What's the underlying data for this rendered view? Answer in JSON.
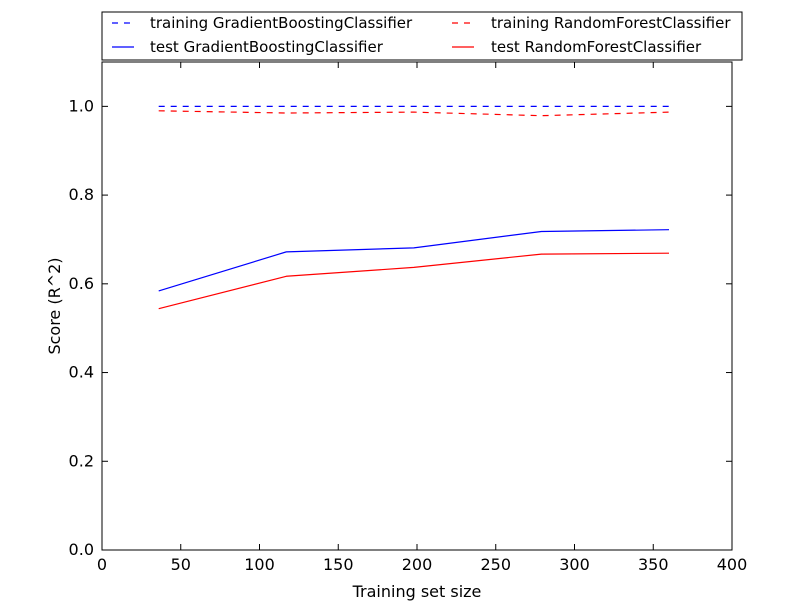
{
  "chart_data": {
    "type": "line",
    "title": "",
    "xlabel": "Training set size",
    "ylabel": "Score (R^2)",
    "xlim": [
      0,
      400
    ],
    "ylim": [
      0.0,
      1.1
    ],
    "x_ticks": [
      0,
      50,
      100,
      150,
      200,
      250,
      300,
      350,
      400
    ],
    "y_ticks": [
      0.0,
      0.2,
      0.4,
      0.6,
      0.8,
      1.0
    ],
    "x_tick_labels": [
      "0",
      "50",
      "100",
      "150",
      "200",
      "250",
      "300",
      "350",
      "400"
    ],
    "y_tick_labels": [
      "0.0",
      "0.2",
      "0.4",
      "0.6",
      "0.8",
      "1.0"
    ],
    "grid": false,
    "legend_position": "top",
    "x": [
      36,
      117,
      198,
      279,
      360
    ],
    "series": [
      {
        "name": "training GradientBoostingClassifier",
        "values": [
          1.0,
          1.0,
          1.0,
          1.0,
          1.0
        ],
        "color": "#0000ff",
        "style": "dashed"
      },
      {
        "name": "test GradientBoostingClassifier",
        "values": [
          0.584,
          0.672,
          0.681,
          0.718,
          0.722
        ],
        "color": "#0000ff",
        "style": "solid"
      },
      {
        "name": "training RandomForestClassifier",
        "values": [
          0.99,
          0.985,
          0.987,
          0.979,
          0.987
        ],
        "color": "#ff0000",
        "style": "dashed"
      },
      {
        "name": "test RandomForestClassifier",
        "values": [
          0.544,
          0.617,
          0.637,
          0.667,
          0.669
        ],
        "color": "#ff0000",
        "style": "solid"
      }
    ]
  }
}
